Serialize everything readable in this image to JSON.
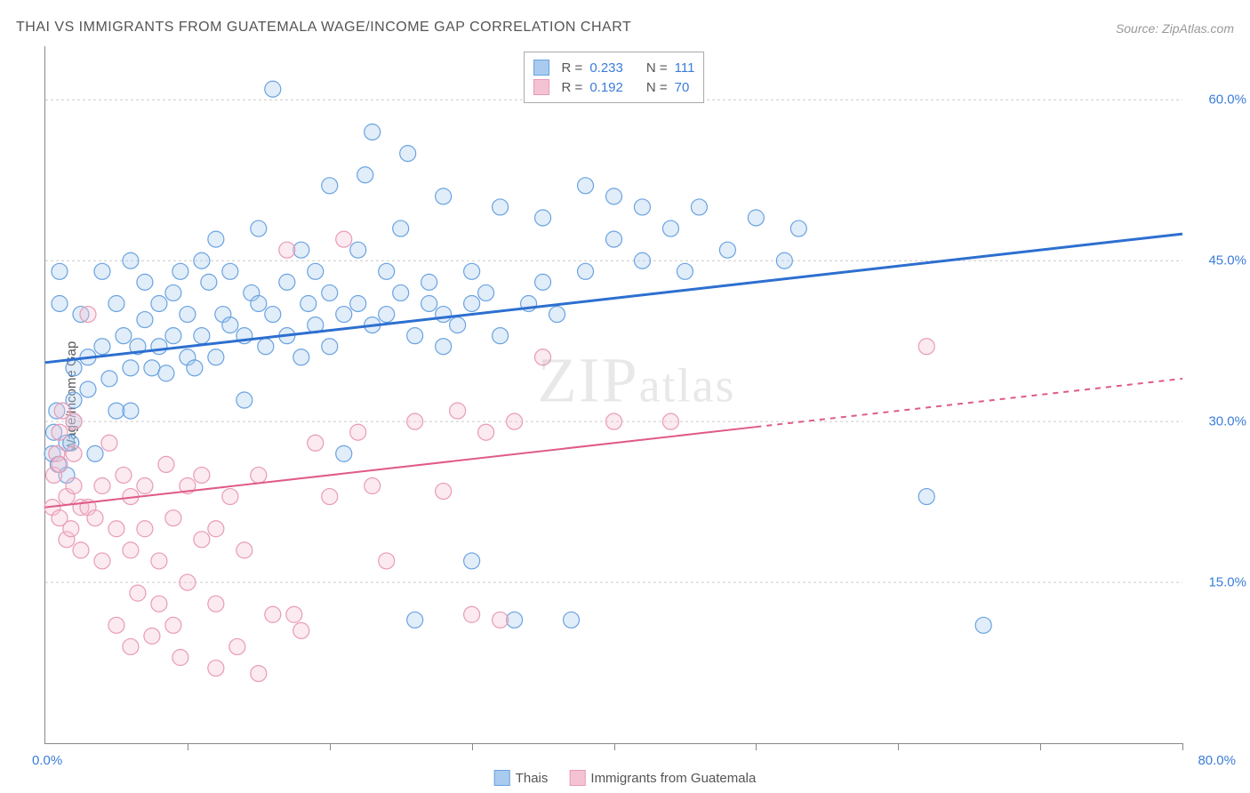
{
  "title": "THAI VS IMMIGRANTS FROM GUATEMALA WAGE/INCOME GAP CORRELATION CHART",
  "source": "Source: ZipAtlas.com",
  "watermark": "ZIPatlas",
  "chart": {
    "type": "scatter",
    "y_label": "Wage/Income Gap",
    "x_min": 0.0,
    "x_max": 80.0,
    "y_min": 0.0,
    "y_max": 65.0,
    "y_ticks": [
      15.0,
      30.0,
      45.0,
      60.0
    ],
    "y_tick_labels": [
      "15.0%",
      "30.0%",
      "45.0%",
      "60.0%"
    ],
    "x_tick_min_label": "0.0%",
    "x_tick_max_label": "80.0%",
    "x_tick_marks": [
      0,
      10,
      20,
      30,
      40,
      50,
      60,
      70,
      80
    ],
    "background_color": "#ffffff",
    "grid_color": "#cccccc",
    "axis_color": "#888888",
    "marker_radius": 9,
    "marker_stroke_width": 1.2,
    "marker_fill_opacity": 0.35,
    "series": [
      {
        "name": "Thais",
        "label": "Thais",
        "color_stroke": "#6aa3e0",
        "color_fill": "#a8cbef",
        "trend_line_color": "#2d6fd0",
        "trend_line_width": 3,
        "R": "0.233",
        "N": "111",
        "trend": {
          "x1": 0,
          "y1": 35.5,
          "x2": 80,
          "y2": 47.5
        },
        "trend_dash_after_x": null,
        "points": [
          [
            0.5,
            27
          ],
          [
            0.6,
            29
          ],
          [
            0.8,
            31
          ],
          [
            0.9,
            26
          ],
          [
            1,
            41
          ],
          [
            1,
            44
          ],
          [
            1.5,
            25
          ],
          [
            1.5,
            28
          ],
          [
            1.8,
            28
          ],
          [
            2,
            30
          ],
          [
            2,
            32
          ],
          [
            2,
            35
          ],
          [
            2.5,
            40
          ],
          [
            3,
            33
          ],
          [
            3,
            36
          ],
          [
            3.5,
            27
          ],
          [
            4,
            37
          ],
          [
            4,
            44
          ],
          [
            4.5,
            34
          ],
          [
            5,
            31
          ],
          [
            5,
            41
          ],
          [
            5.5,
            38
          ],
          [
            6,
            31
          ],
          [
            6,
            35
          ],
          [
            6,
            45
          ],
          [
            6.5,
            37
          ],
          [
            7,
            39.5
          ],
          [
            7,
            43
          ],
          [
            7.5,
            35
          ],
          [
            8,
            37
          ],
          [
            8,
            41
          ],
          [
            8.5,
            34.5
          ],
          [
            9,
            38
          ],
          [
            9,
            42
          ],
          [
            9.5,
            44
          ],
          [
            10,
            36
          ],
          [
            10,
            40
          ],
          [
            10.5,
            35
          ],
          [
            11,
            38
          ],
          [
            11,
            45
          ],
          [
            11.5,
            43
          ],
          [
            12,
            36
          ],
          [
            12,
            47
          ],
          [
            12.5,
            40
          ],
          [
            13,
            39
          ],
          [
            13,
            44
          ],
          [
            14,
            32
          ],
          [
            14,
            38
          ],
          [
            14.5,
            42
          ],
          [
            15,
            41
          ],
          [
            15,
            48
          ],
          [
            15.5,
            37
          ],
          [
            16,
            40
          ],
          [
            16,
            61
          ],
          [
            17,
            38
          ],
          [
            17,
            43
          ],
          [
            18,
            36
          ],
          [
            18,
            46
          ],
          [
            18.5,
            41
          ],
          [
            19,
            39
          ],
          [
            19,
            44
          ],
          [
            20,
            37
          ],
          [
            20,
            42
          ],
          [
            20,
            52
          ],
          [
            21,
            40
          ],
          [
            21,
            27
          ],
          [
            22,
            41
          ],
          [
            22,
            46
          ],
          [
            22.5,
            53
          ],
          [
            23,
            57
          ],
          [
            23,
            39
          ],
          [
            24,
            40
          ],
          [
            24,
            44
          ],
          [
            25,
            42
          ],
          [
            25,
            48
          ],
          [
            25.5,
            55
          ],
          [
            26,
            38
          ],
          [
            26,
            11.5
          ],
          [
            27,
            41
          ],
          [
            27,
            43
          ],
          [
            28,
            40
          ],
          [
            28,
            37
          ],
          [
            28,
            51
          ],
          [
            29,
            39
          ],
          [
            30,
            41
          ],
          [
            30,
            44
          ],
          [
            30,
            17
          ],
          [
            31,
            42
          ],
          [
            32,
            50
          ],
          [
            32,
            38
          ],
          [
            33,
            11.5
          ],
          [
            34,
            41
          ],
          [
            35,
            43
          ],
          [
            35,
            49
          ],
          [
            36,
            40
          ],
          [
            37,
            11.5
          ],
          [
            38,
            52
          ],
          [
            38,
            44
          ],
          [
            40,
            47
          ],
          [
            40,
            51
          ],
          [
            42,
            45
          ],
          [
            42,
            50
          ],
          [
            44,
            48
          ],
          [
            45,
            44
          ],
          [
            46,
            50
          ],
          [
            48,
            46
          ],
          [
            50,
            49
          ],
          [
            52,
            45
          ],
          [
            53,
            48
          ],
          [
            62,
            23
          ],
          [
            66,
            11
          ]
        ]
      },
      {
        "name": "Immigrants from Guatemala",
        "label": "Immigrants from Guatemala",
        "color_stroke": "#e89bb5",
        "color_fill": "#f4c3d3",
        "trend_line_color": "#e05a8a",
        "trend_line_width": 2,
        "R": "0.192",
        "N": "70",
        "trend": {
          "x1": 0,
          "y1": 22.0,
          "x2": 80,
          "y2": 34.0
        },
        "trend_dash_after_x": 50,
        "points": [
          [
            0.5,
            22
          ],
          [
            0.6,
            25
          ],
          [
            0.8,
            27
          ],
          [
            1,
            21
          ],
          [
            1,
            26
          ],
          [
            1,
            29
          ],
          [
            1.2,
            31
          ],
          [
            1.5,
            19
          ],
          [
            1.5,
            23
          ],
          [
            1.8,
            20
          ],
          [
            2,
            24
          ],
          [
            2,
            27
          ],
          [
            2,
            30
          ],
          [
            2.5,
            18
          ],
          [
            2.5,
            22
          ],
          [
            3,
            40
          ],
          [
            3,
            22
          ],
          [
            3.5,
            21
          ],
          [
            4,
            24
          ],
          [
            4,
            17
          ],
          [
            4.5,
            28
          ],
          [
            5,
            20
          ],
          [
            5,
            11
          ],
          [
            5.5,
            25
          ],
          [
            6,
            23
          ],
          [
            6,
            18
          ],
          [
            6,
            9
          ],
          [
            6.5,
            14
          ],
          [
            7,
            24
          ],
          [
            7,
            20
          ],
          [
            7.5,
            10
          ],
          [
            8,
            13
          ],
          [
            8,
            17
          ],
          [
            8.5,
            26
          ],
          [
            9,
            21
          ],
          [
            9,
            11
          ],
          [
            9.5,
            8
          ],
          [
            10,
            24
          ],
          [
            10,
            15
          ],
          [
            11,
            19
          ],
          [
            11,
            25
          ],
          [
            12,
            13
          ],
          [
            12,
            20
          ],
          [
            12,
            7
          ],
          [
            13,
            23
          ],
          [
            13.5,
            9
          ],
          [
            14,
            18
          ],
          [
            15,
            6.5
          ],
          [
            15,
            25
          ],
          [
            16,
            12
          ],
          [
            17,
            46
          ],
          [
            17.5,
            12
          ],
          [
            18,
            10.5
          ],
          [
            19,
            28
          ],
          [
            20,
            23
          ],
          [
            21,
            47
          ],
          [
            22,
            29
          ],
          [
            23,
            24
          ],
          [
            24,
            17
          ],
          [
            26,
            30
          ],
          [
            28,
            23.5
          ],
          [
            29,
            31
          ],
          [
            30,
            12
          ],
          [
            31,
            29
          ],
          [
            32,
            11.5
          ],
          [
            33,
            30
          ],
          [
            35,
            36
          ],
          [
            40,
            30
          ],
          [
            44,
            30
          ],
          [
            62,
            37
          ]
        ]
      }
    ]
  },
  "legend": {
    "swatch_blue_fill": "#a8cbef",
    "swatch_blue_stroke": "#6aa3e0",
    "swatch_pink_fill": "#f4c3d3",
    "swatch_pink_stroke": "#e89bb5"
  }
}
